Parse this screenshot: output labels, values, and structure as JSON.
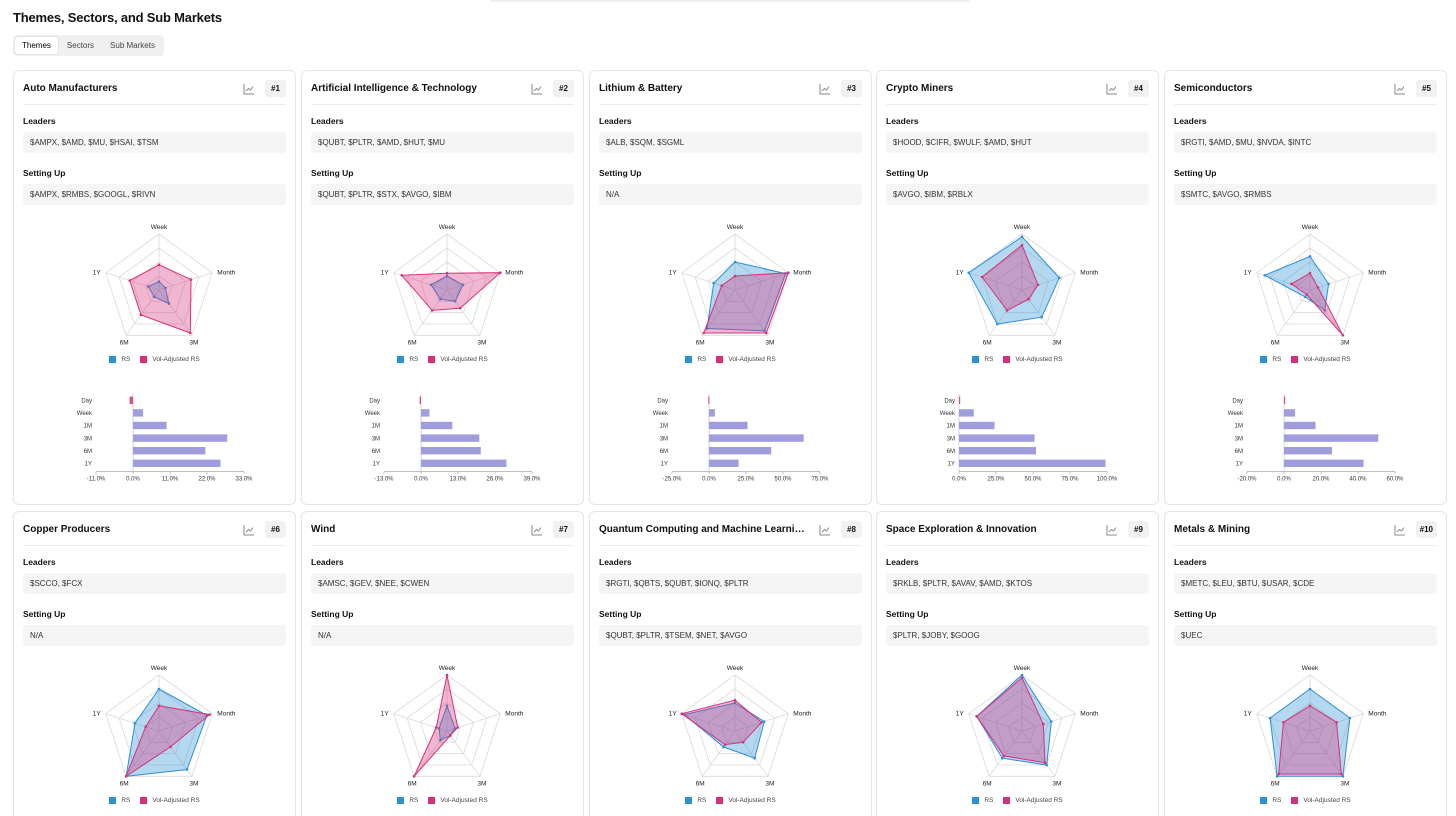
{
  "header": {
    "title": "Themes, Sectors, and Sub Markets",
    "tabs": [
      {
        "label": "Themes",
        "active": true
      },
      {
        "label": "Sectors",
        "active": false
      },
      {
        "label": "Sub Markets",
        "active": false
      }
    ]
  },
  "labels": {
    "leaders": "Leaders",
    "setting_up": "Setting Up"
  },
  "colors": {
    "rs": "#2b8fd6",
    "vol_rs": "#d6307a",
    "bar": "#a09ddc",
    "day_bar": "#e0507e"
  },
  "legend": {
    "rs": "RS",
    "vol_rs": "Vol-Adjusted RS"
  },
  "axes": [
    "Week",
    "Month",
    "3M",
    "6M",
    "1Y"
  ],
  "bar_categories": [
    "Day",
    "Week",
    "1M",
    "3M",
    "6M",
    "1Y"
  ],
  "cards": [
    {
      "rank": "#1",
      "title": "Auto Manufacturers",
      "leaders": "$AMPX, $AMD, $MU, $HSAI, $TSM",
      "setting_up": "$AMPX, $RMBS, $GOOGL, $RIVN",
      "rs": [
        0.15,
        0.12,
        0.3,
        0.15,
        0.2
      ],
      "vol_rs": [
        0.45,
        0.6,
        0.95,
        0.55,
        0.55
      ],
      "bars": [
        -1,
        3,
        10,
        28,
        21.5,
        26
      ],
      "ticks": [
        "-11.0%",
        "0.0%",
        "11.0%",
        "22.0%",
        "33.0%"
      ],
      "ticks_num": [
        -11,
        0,
        11,
        22,
        33
      ]
    },
    {
      "rank": "#2",
      "title": "Artificial Intelligence & Technology",
      "leaders": "$QUBT, $PLTR, $AMD, $HUT, $MU",
      "setting_up": "$QUBT, $PLTR, $STX, $AVGO, $IBM",
      "rs": [
        0.25,
        0.3,
        0.25,
        0.2,
        0.3
      ],
      "vol_rs": [
        0.3,
        1.0,
        0.4,
        0.45,
        0.85
      ],
      "bars": [
        -0.5,
        3,
        11,
        20.5,
        21,
        30
      ],
      "ticks": [
        "-13.0%",
        "0.0%",
        "13.0%",
        "26.0%",
        "39.0%"
      ],
      "ticks_num": [
        -13,
        0,
        13,
        26,
        39
      ]
    },
    {
      "rank": "#3",
      "title": "Lithium & Battery",
      "leaders": "$ALB, $SQM, $SGML",
      "setting_up": "N/A",
      "rs": [
        0.5,
        0.95,
        0.9,
        0.85,
        0.4
      ],
      "vol_rs": [
        0.25,
        1.0,
        0.95,
        0.95,
        0.25
      ],
      "bars": [
        -0.5,
        4,
        26,
        64,
        42,
        20
      ],
      "ticks": [
        "-25.0%",
        "0.0%",
        "25.0%",
        "50.0%",
        "75.0%"
      ],
      "ticks_num": [
        -25,
        0,
        25,
        50,
        75
      ]
    },
    {
      "rank": "#4",
      "title": "Crypto Miners",
      "leaders": "$HOOD, $CIFR, $WULF, $AMD, $HUT",
      "setting_up": "$AVGO, $IBM, $RBLX",
      "rs": [
        0.95,
        0.7,
        0.6,
        0.75,
        1.0
      ],
      "vol_rs": [
        0.8,
        0.3,
        0.2,
        0.45,
        0.75
      ],
      "bars": [
        0,
        10,
        24,
        51,
        52,
        99
      ],
      "ticks": [
        "0.0%",
        "25.0%",
        "50.0%",
        "75.0%",
        "100.0%"
      ],
      "ticks_num": [
        0,
        25,
        50,
        75,
        100
      ]
    },
    {
      "rank": "#5",
      "title": "Semiconductors",
      "leaders": "$RGTI, $AMD, $MU, $NVDA, $INTC",
      "setting_up": "$SMTC, $AVGO, $RMBS",
      "rs": [
        0.6,
        0.35,
        0.45,
        0.15,
        0.85
      ],
      "vol_rs": [
        0.3,
        0.15,
        1.0,
        0.1,
        0.35
      ],
      "bars": [
        0,
        6,
        17,
        51,
        26,
        43
      ],
      "ticks": [
        "-20.0%",
        "0.0%",
        "20.0%",
        "40.0%",
        "60.0%"
      ],
      "ticks_num": [
        -20,
        0,
        20,
        40,
        60
      ]
    },
    {
      "rank": "#6",
      "title": "Copper Producers",
      "leaders": "$SCCO, $FCX",
      "setting_up": "N/A",
      "rs": [
        0.75,
        0.9,
        0.85,
        1.0,
        0.45
      ],
      "vol_rs": [
        0.45,
        0.95,
        0.35,
        1.0,
        0.25
      ]
    },
    {
      "rank": "#7",
      "title": "Wind",
      "leaders": "$AMSC, $GEV, $NEE, $CWEN",
      "setting_up": "N/A",
      "rs": [
        0.45,
        0.15,
        0.1,
        0.2,
        0.15
      ],
      "vol_rs": [
        1.0,
        0.2,
        0.1,
        1.0,
        0.2
      ]
    },
    {
      "rank": "#8",
      "title": "Quantum Computing and Machine Learning Stocks",
      "leaders": "$RGTI, $QBTS, $QUBT, $IONQ, $PLTR",
      "setting_up": "$QUBT, $PLTR, $TSEM, $NET, $AVGO",
      "rs": [
        0.5,
        0.55,
        0.6,
        0.35,
        0.95
      ],
      "vol_rs": [
        0.55,
        0.5,
        0.25,
        0.3,
        1.0
      ]
    },
    {
      "rank": "#9",
      "title": "Space Exploration & Innovation",
      "leaders": "$RKLB, $PLTR, $AVAV, $AMD, $KTOS",
      "setting_up": "$PLTR, $JOBY, $GOOG",
      "rs": [
        1.0,
        0.55,
        0.75,
        0.6,
        0.85
      ],
      "vol_rs": [
        0.95,
        0.4,
        0.7,
        0.55,
        0.85
      ]
    },
    {
      "rank": "#10",
      "title": "Metals & Mining",
      "leaders": "$METC, $LEU, $BTU, $USAR, $CDE",
      "setting_up": "$UEC",
      "rs": [
        0.75,
        0.75,
        1.0,
        1.0,
        0.75
      ],
      "vol_rs": [
        0.45,
        0.5,
        0.95,
        0.95,
        0.5
      ]
    }
  ]
}
